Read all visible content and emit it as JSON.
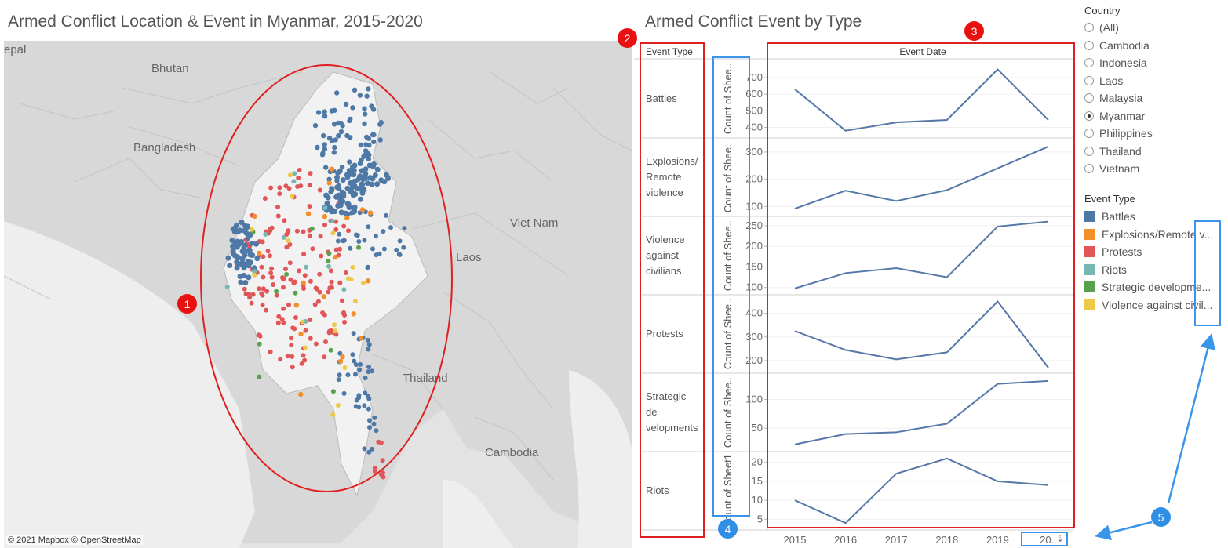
{
  "map": {
    "title": "Armed Conflict Location & Event in Myanmar, 2015-2020",
    "attribution": "© 2021 Mapbox  © OpenStreetMap",
    "labels": {
      "nepal": "epal",
      "bhutan": "Bhutan",
      "bangladesh": "Bangladesh",
      "vietnam": "Viet Nam",
      "laos": "Laos",
      "thailand": "Thailand",
      "cambodia": "Cambodia"
    },
    "colors": {
      "background": "#e3e3e3",
      "land": "#d8d8d8",
      "highlight": "#f2f2f2",
      "water": "#eeeeee"
    }
  },
  "chart_data": {
    "type": "line",
    "title": "Armed Conflict Event by Type",
    "row_header": "Event Type",
    "column_header": "Event Date",
    "x": [
      "2015",
      "2016",
      "2017",
      "2018",
      "2019",
      "20.."
    ],
    "y_axis_label": "Count of Shee..",
    "y_axis_label_last": "Count of Sheet1",
    "series": [
      {
        "name": "Battles",
        "values": [
          630,
          380,
          430,
          445,
          750,
          445
        ],
        "ticks": [
          400,
          500,
          600,
          700
        ],
        "ylim": [
          355,
          790
        ]
      },
      {
        "name": "Explosions/ Remote violence",
        "values": [
          92,
          158,
          120,
          160,
          240,
          320
        ],
        "ticks": [
          100,
          200,
          300
        ],
        "ylim": [
          75,
          340
        ]
      },
      {
        "name": "Violence against civilians",
        "values": [
          98,
          135,
          147,
          125,
          248,
          260
        ],
        "ticks": [
          100,
          150,
          200,
          250
        ],
        "ylim": [
          90,
          265
        ]
      },
      {
        "name": "Protests",
        "values": [
          325,
          245,
          205,
          235,
          450,
          170
        ],
        "ticks": [
          200,
          300,
          400
        ],
        "ylim": [
          160,
          465
        ]
      },
      {
        "name": "Strategic de velopments",
        "values": [
          22,
          40,
          43,
          58,
          127,
          132
        ],
        "ticks": [
          50,
          100
        ],
        "ylim": [
          15,
          140
        ]
      },
      {
        "name": "Riots",
        "values": [
          10,
          4,
          17,
          21,
          15,
          14
        ],
        "ticks": [
          5,
          10,
          15,
          20
        ],
        "ylim": [
          3,
          22
        ]
      }
    ],
    "line_color": "#5678a8"
  },
  "filter": {
    "title": "Country",
    "options": [
      "(All)",
      "Cambodia",
      "Indonesia",
      "Laos",
      "Malaysia",
      "Myanmar",
      "Philippines",
      "Thailand",
      "Vietnam"
    ],
    "selected": "Myanmar"
  },
  "legend": {
    "title": "Event Type",
    "items": [
      {
        "label": "Battles",
        "color": "#4e79a7"
      },
      {
        "label": "Explosions/Remote v...",
        "color": "#f28e2b"
      },
      {
        "label": "Protests",
        "color": "#e15759"
      },
      {
        "label": "Riots",
        "color": "#76b7b2"
      },
      {
        "label": "Strategic developme...",
        "color": "#59a14f"
      },
      {
        "label": "Violence against civil...",
        "color": "#edc948"
      }
    ]
  },
  "annotations": {
    "markers": [
      "1",
      "2",
      "3",
      "4",
      "5"
    ],
    "colors": {
      "red": "#e81010",
      "blue": "#2f8fe6"
    }
  }
}
